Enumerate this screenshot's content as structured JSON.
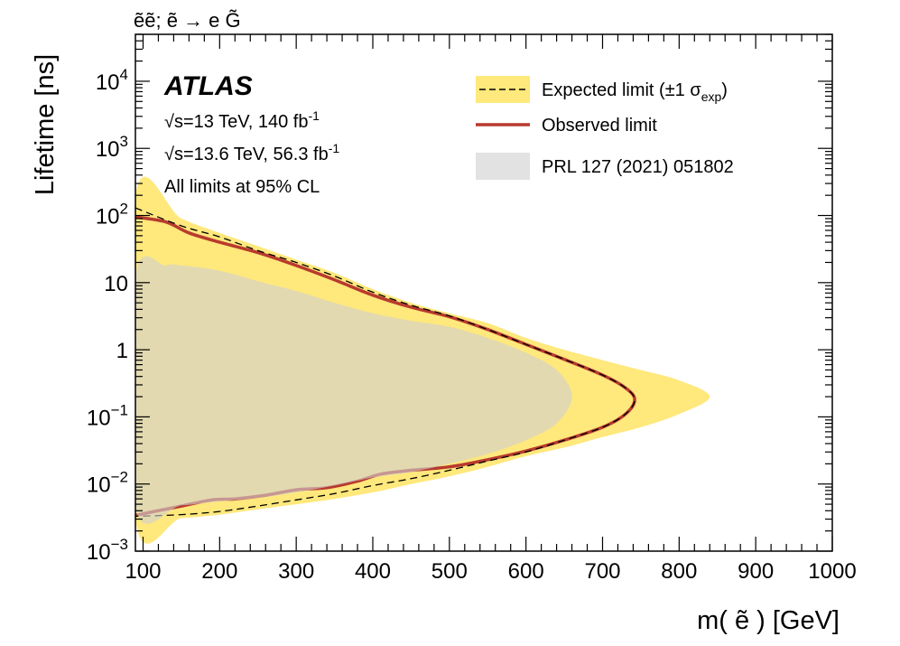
{
  "chart_data": {
    "type": "line",
    "process_label": "ẽẽ; ẽ → e G̃",
    "xlabel": "m( ẽ ) [GeV]",
    "ylabel": "Lifetime [ns]",
    "xlim": [
      90,
      1000
    ],
    "ylim": [
      0.001,
      50000
    ],
    "y_scale": "log",
    "x_ticks": [
      100,
      200,
      300,
      400,
      500,
      600,
      700,
      800,
      900,
      1000
    ],
    "x_tick_labels": [
      "100",
      "200",
      "300",
      "400",
      "500",
      "600",
      "700",
      "800",
      "900",
      "1000"
    ],
    "y_ticks": [
      0.001,
      0.01,
      0.1,
      1,
      10,
      100,
      1000,
      10000
    ],
    "y_tick_labels": [
      {
        "base": "10",
        "exp": "−3"
      },
      {
        "base": "10",
        "exp": "−2"
      },
      {
        "base": "10",
        "exp": "−1"
      },
      {
        "base": "1",
        "exp": ""
      },
      {
        "base": "10",
        "exp": ""
      },
      {
        "base": "10",
        "exp": "2"
      },
      {
        "base": "10",
        "exp": "3"
      },
      {
        "base": "10",
        "exp": "4"
      }
    ],
    "annotations": {
      "experiment": "ATLAS",
      "line1_sqrt": "√s",
      "line1_rest": "=13 TeV, 140 fb",
      "line1_sup": "-1",
      "line2_sqrt": "√s",
      "line2_rest": "=13.6 TeV, 56.3 fb",
      "line2_sup": "-1",
      "line3": "All limits at 95% CL"
    },
    "legend": {
      "placement": "top-right",
      "expected_main": "Expected limit (±1 σ",
      "expected_sub": "exp",
      "expected_close": ")",
      "observed": "Observed limit",
      "previous": "PRL 127 (2021) 051802"
    },
    "colors": {
      "band": "#ffe87c",
      "observed": "#b83a2e",
      "previous": "#d0d0d0",
      "expected": "#000000"
    },
    "series": [
      {
        "name": "Expected ±1σ band",
        "kind": "band",
        "points": [
          [
            90,
            200
          ],
          [
            150,
            90
          ],
          [
            200,
            55
          ],
          [
            250,
            35
          ],
          [
            300,
            22
          ],
          [
            350,
            14
          ],
          [
            400,
            8
          ],
          [
            450,
            5
          ],
          [
            500,
            3.5
          ],
          [
            550,
            2.5
          ],
          [
            600,
            1.5
          ],
          [
            650,
            1.0
          ],
          [
            700,
            0.7
          ],
          [
            750,
            0.5
          ],
          [
            800,
            0.35
          ],
          [
            840,
            0.2
          ],
          [
            800,
            0.11
          ],
          [
            750,
            0.07
          ],
          [
            700,
            0.05
          ],
          [
            650,
            0.035
          ],
          [
            600,
            0.026
          ],
          [
            550,
            0.018
          ],
          [
            500,
            0.013
          ],
          [
            450,
            0.01
          ],
          [
            400,
            0.0075
          ],
          [
            350,
            0.006
          ],
          [
            300,
            0.005
          ],
          [
            250,
            0.0042
          ],
          [
            200,
            0.0035
          ],
          [
            150,
            0.0031
          ],
          [
            90,
            0.0029
          ]
        ]
      },
      {
        "name": "Expected limit",
        "kind": "dashed",
        "points": [
          [
            90,
            130
          ],
          [
            150,
            70
          ],
          [
            200,
            48
          ],
          [
            250,
            30
          ],
          [
            300,
            20
          ],
          [
            350,
            12.5
          ],
          [
            400,
            7.2
          ],
          [
            450,
            4.6
          ],
          [
            500,
            3.2
          ],
          [
            550,
            2.0
          ],
          [
            600,
            1.2
          ],
          [
            650,
            0.72
          ],
          [
            700,
            0.42
          ],
          [
            730,
            0.27
          ],
          [
            742,
            0.18
          ],
          [
            730,
            0.11
          ],
          [
            700,
            0.07
          ],
          [
            650,
            0.045
          ],
          [
            600,
            0.03
          ],
          [
            550,
            0.022
          ],
          [
            500,
            0.016
          ],
          [
            450,
            0.012
          ],
          [
            400,
            0.0095
          ],
          [
            350,
            0.0072
          ],
          [
            300,
            0.0058
          ],
          [
            250,
            0.0047
          ],
          [
            200,
            0.0039
          ],
          [
            150,
            0.0035
          ],
          [
            90,
            0.0033
          ]
        ]
      },
      {
        "name": "Observed limit",
        "kind": "solid",
        "points": [
          [
            90,
            95
          ],
          [
            130,
            80
          ],
          [
            160,
            55
          ],
          [
            200,
            40
          ],
          [
            250,
            28
          ],
          [
            300,
            18
          ],
          [
            350,
            11
          ],
          [
            400,
            6.5
          ],
          [
            450,
            4.3
          ],
          [
            500,
            3.1
          ],
          [
            550,
            2.0
          ],
          [
            600,
            1.2
          ],
          [
            650,
            0.72
          ],
          [
            700,
            0.42
          ],
          [
            730,
            0.27
          ],
          [
            742,
            0.18
          ],
          [
            730,
            0.11
          ],
          [
            700,
            0.07
          ],
          [
            650,
            0.045
          ],
          [
            600,
            0.031
          ],
          [
            550,
            0.023
          ],
          [
            500,
            0.018
          ],
          [
            450,
            0.016
          ],
          [
            410,
            0.014
          ],
          [
            380,
            0.011
          ],
          [
            340,
            0.0088
          ],
          [
            300,
            0.0082
          ],
          [
            260,
            0.0068
          ],
          [
            220,
            0.006
          ],
          [
            190,
            0.0058
          ],
          [
            150,
            0.0047
          ],
          [
            110,
            0.0038
          ],
          [
            90,
            0.0034
          ]
        ]
      },
      {
        "name": "PRL 127 (2021) 051802",
        "kind": "area",
        "points": [
          [
            90,
            12
          ],
          [
            130,
            18
          ],
          [
            150,
            18
          ],
          [
            200,
            15
          ],
          [
            250,
            10.5
          ],
          [
            300,
            7.5
          ],
          [
            350,
            5
          ],
          [
            400,
            3.5
          ],
          [
            450,
            2.7
          ],
          [
            500,
            2.2
          ],
          [
            550,
            1.5
          ],
          [
            600,
            0.9
          ],
          [
            640,
            0.5
          ],
          [
            660,
            0.2
          ],
          [
            640,
            0.08
          ],
          [
            600,
            0.045
          ],
          [
            550,
            0.028
          ],
          [
            500,
            0.02
          ],
          [
            450,
            0.015
          ],
          [
            400,
            0.0125
          ],
          [
            350,
            0.0095
          ],
          [
            300,
            0.0075
          ],
          [
            250,
            0.0062
          ],
          [
            200,
            0.0055
          ],
          [
            150,
            0.0048
          ],
          [
            90,
            0.0045
          ]
        ]
      }
    ]
  }
}
